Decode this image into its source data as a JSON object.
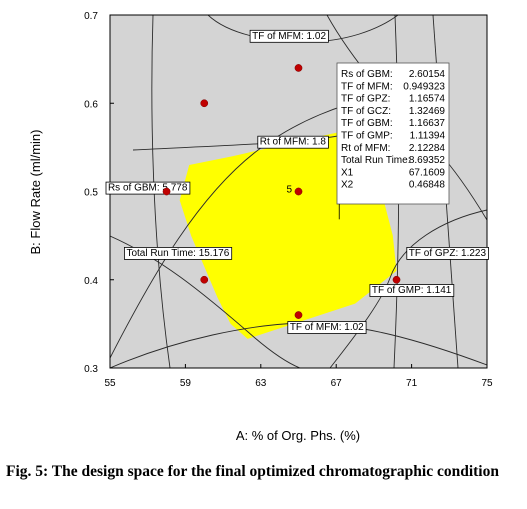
{
  "chart_data": {
    "type": "scatter",
    "title": "",
    "xlabel": "A: % of Org. Phs. (%)",
    "ylabel": "B: Flow Rate (ml/min)",
    "xlim": [
      55,
      75
    ],
    "ylim": [
      0.3,
      0.7
    ],
    "x_ticks": [
      "55",
      "59",
      "63",
      "67",
      "71",
      "75"
    ],
    "y_ticks": [
      "0.3",
      "0.4",
      "0.5",
      "0.6",
      "0.7"
    ],
    "grid": false,
    "design_space_color": "#ffff00",
    "plot_background": "#d4d4d4",
    "point_color": "#c00000",
    "points": [
      {
        "x": 65,
        "y": 0.64
      },
      {
        "x": 60,
        "y": 0.6
      },
      {
        "x": 58,
        "y": 0.5
      },
      {
        "x": 65,
        "y": 0.5
      },
      {
        "x": 60,
        "y": 0.4
      },
      {
        "x": 70.2,
        "y": 0.4
      },
      {
        "x": 65,
        "y": 0.36
      }
    ],
    "center_point_replicates": "5",
    "design_space_polygon": [
      [
        59.2,
        0.53
      ],
      [
        61.5,
        0.54
      ],
      [
        67.7,
        0.57
      ],
      [
        69.4,
        0.5
      ],
      [
        70.0,
        0.45
      ],
      [
        70.2,
        0.41
      ],
      [
        68.0,
        0.373
      ],
      [
        62.3,
        0.333
      ],
      [
        61.4,
        0.35
      ],
      [
        60.7,
        0.38
      ],
      [
        59.3,
        0.45
      ],
      [
        58.7,
        0.49
      ]
    ],
    "contour_labels": [
      {
        "text": "TF of MFM: 1.02",
        "x": 64.5,
        "y": 0.677
      },
      {
        "text": "Rt of MFM: 1.8",
        "x": 64.7,
        "y": 0.557
      },
      {
        "text": "Rs of GBM: 5.778",
        "x": 57.0,
        "y": 0.505
      },
      {
        "text": "Total Run Time: 15.176",
        "x": 58.6,
        "y": 0.431
      },
      {
        "text": "TF of GPZ: 1.223",
        "x": 72.9,
        "y": 0.431
      },
      {
        "text": "TF of GMP: 1.141",
        "x": 71.0,
        "y": 0.389
      },
      {
        "text": "TF of MFM: 1.02",
        "x": 66.5,
        "y": 0.347
      }
    ],
    "info_box": [
      [
        "Rs of GBM:",
        "2.60154"
      ],
      [
        "TF of MFM:",
        "0.949323"
      ],
      [
        "TF of GPZ:",
        "1.16574"
      ],
      [
        "TF of GCZ:",
        "1.32469"
      ],
      [
        "TF of GBM:",
        "1.16637"
      ],
      [
        "TF of GMP:",
        "1.11394"
      ],
      [
        "Rt of MFM:",
        "2.12284"
      ],
      [
        "Total Run Time:",
        "8.69352"
      ],
      [
        "X1",
        "67.1609"
      ],
      [
        "X2",
        "0.46848"
      ]
    ]
  },
  "caption": "Fig. 5: The design space for the final optimized chromatographic condition"
}
